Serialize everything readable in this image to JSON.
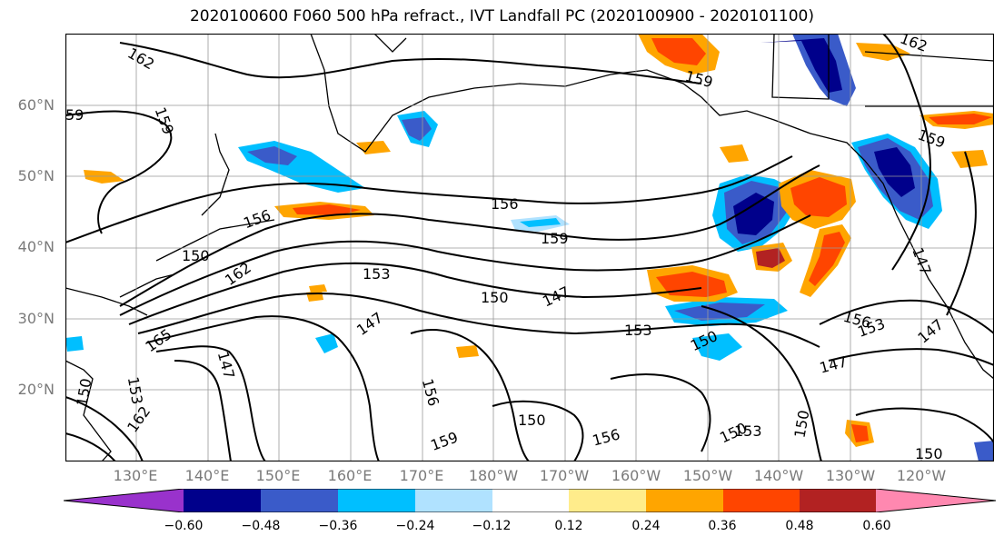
{
  "title": "2020100600 F060 500 hPa refract., IVT Landfall PC (2020100900 - 2020101100)",
  "lat_labels": [
    "60°N",
    "50°N",
    "40°N",
    "30°N",
    "20°N"
  ],
  "lon_labels": [
    "130°E",
    "140°E",
    "150°E",
    "160°E",
    "170°E",
    "180°W",
    "170°W",
    "160°W",
    "150°W",
    "140°W",
    "130°W",
    "120°W"
  ],
  "colorbar": {
    "colors": [
      "#9932cc",
      "#00008b",
      "#3a5bc9",
      "#00bfff",
      "#b0e2ff",
      "#ffffff",
      "#ffec8b",
      "#ffa500",
      "#ff4500",
      "#b22222",
      "#ff88b0"
    ],
    "ticks": [
      "−0.60",
      "−0.48",
      "−0.36",
      "−0.24",
      "−0.12",
      "0.12",
      "0.24",
      "0.36",
      "0.48",
      "0.60"
    ]
  },
  "contour_labels": [
    "162",
    "159",
    "156",
    "159",
    "150",
    "153",
    "150",
    "147",
    "162",
    "147",
    "165",
    "153",
    "150",
    "162",
    "147",
    "147",
    "156",
    "159",
    "150",
    "156",
    "153",
    "150",
    "150",
    "153",
    "150",
    "156",
    "153",
    "147",
    "147",
    "162",
    "59",
    "159",
    "159",
    "156",
    "150"
  ]
}
